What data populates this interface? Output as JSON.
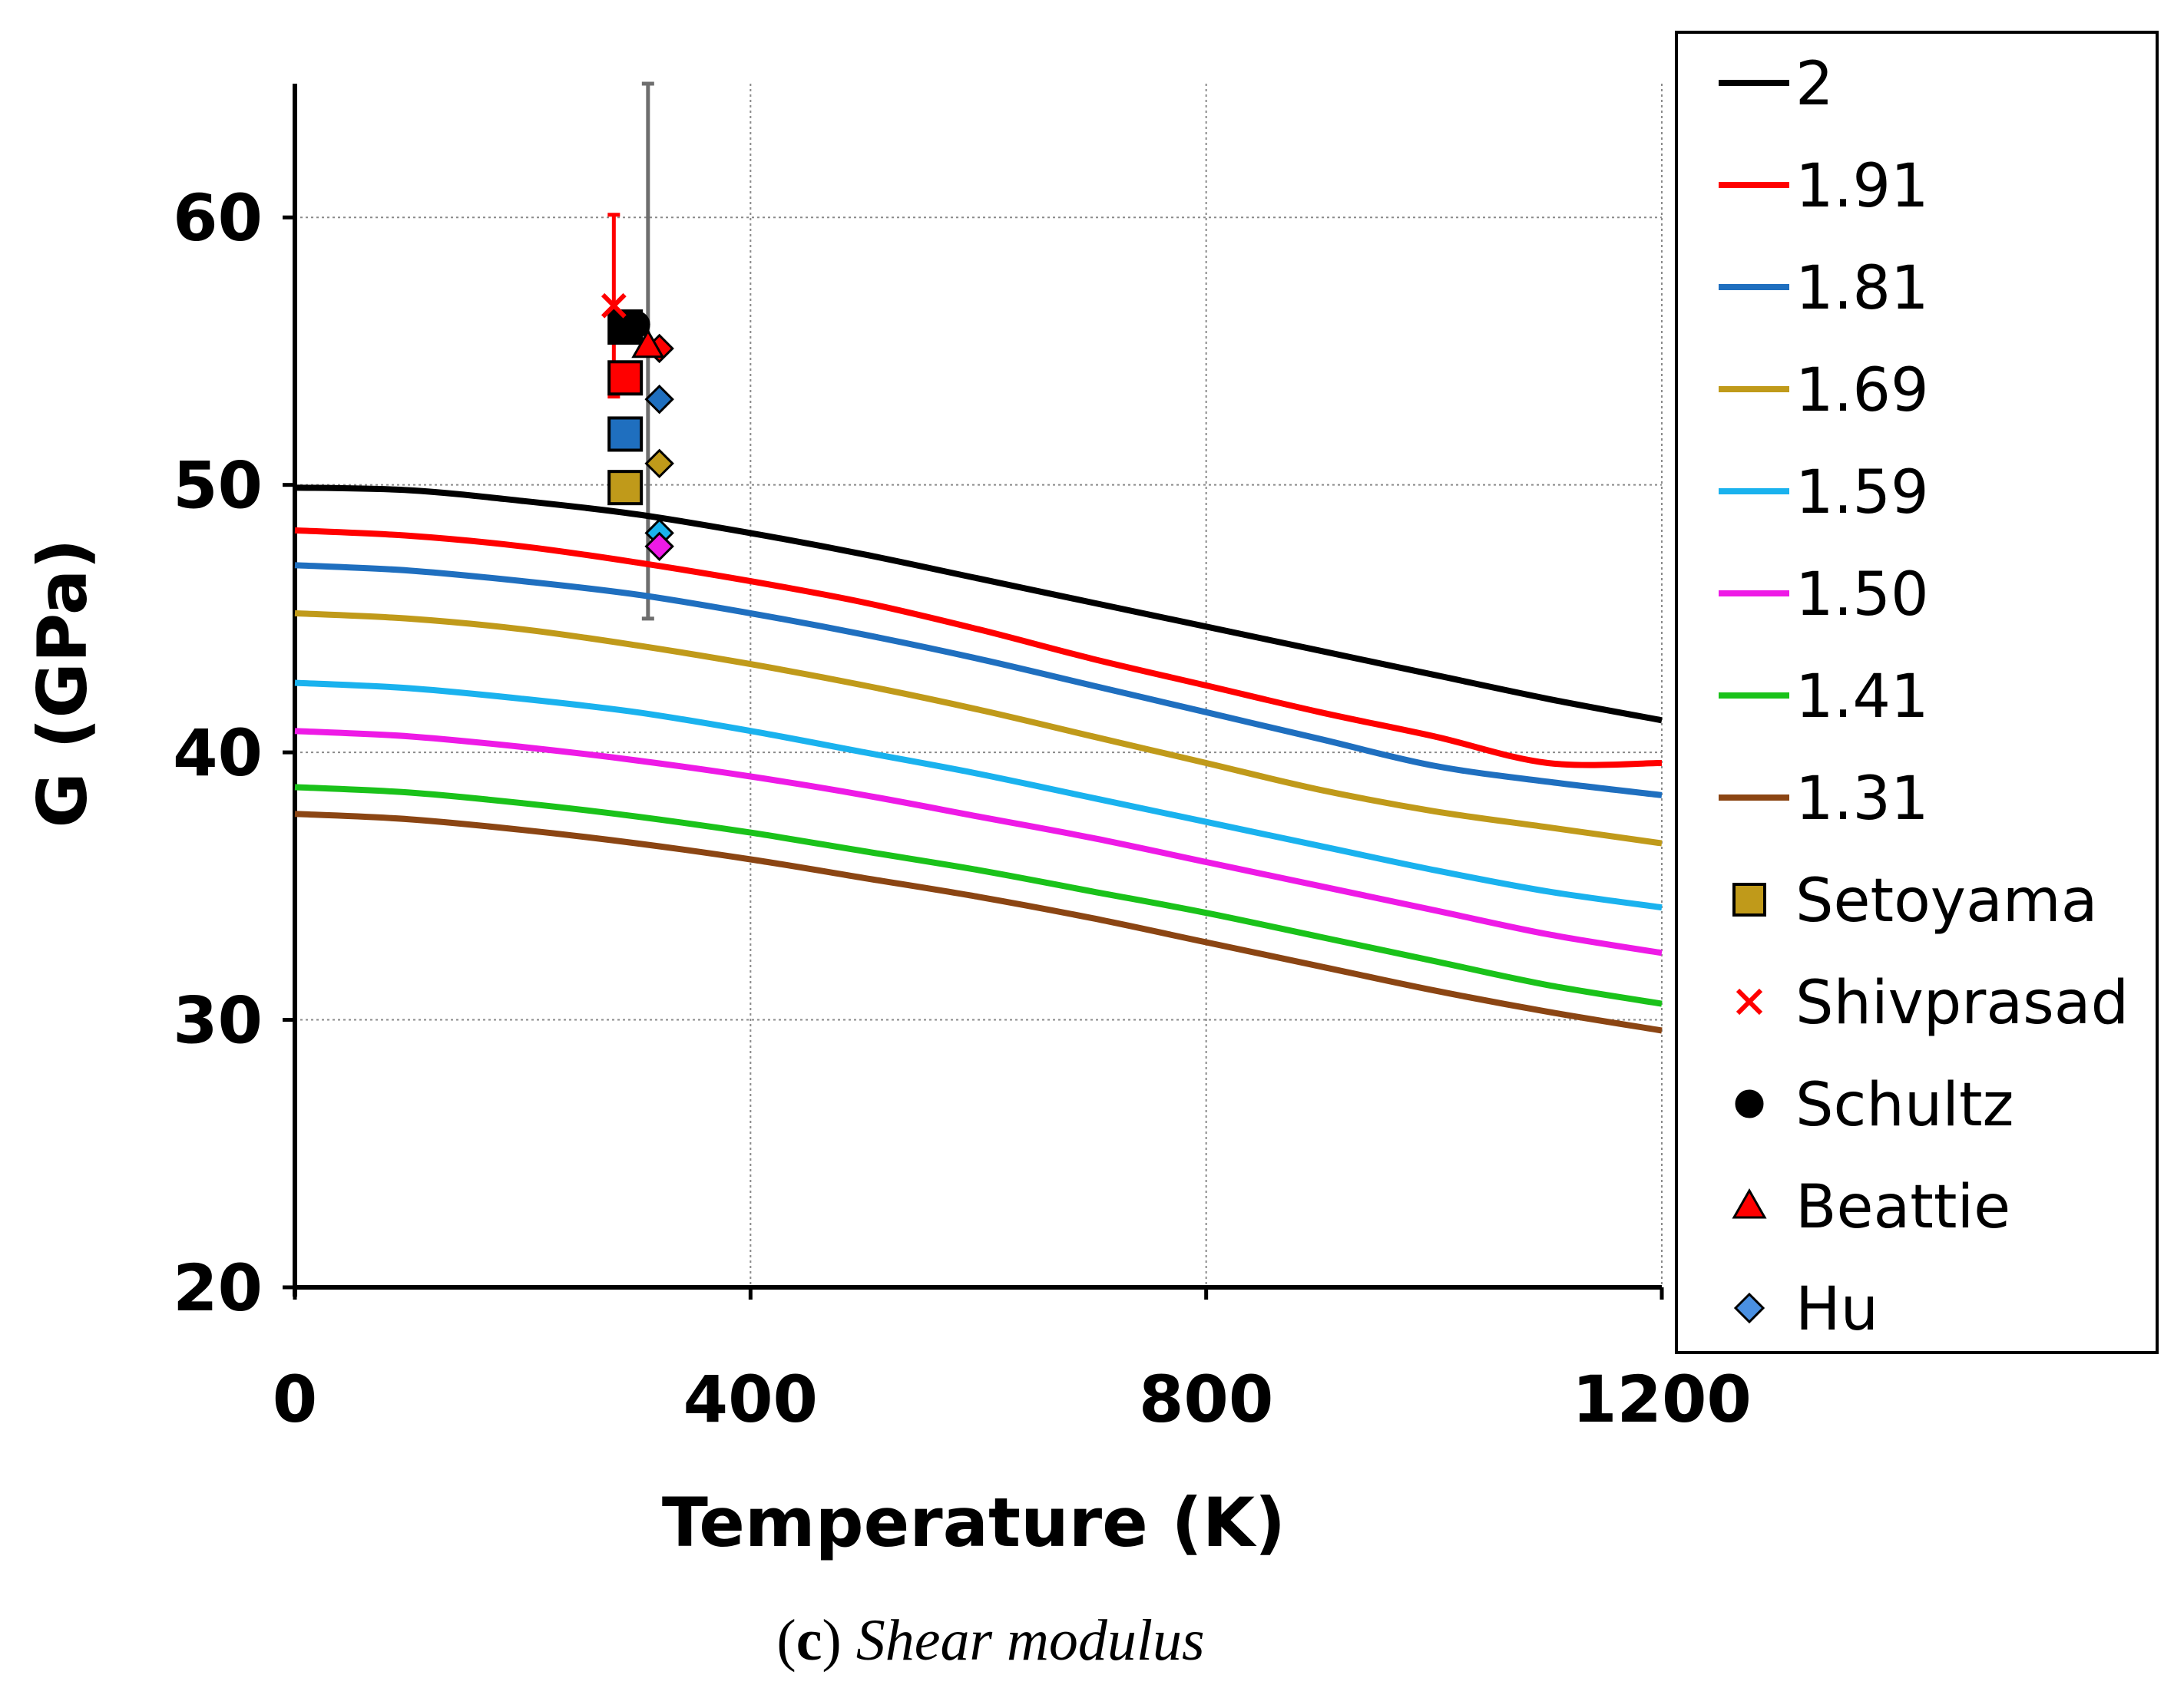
{
  "chart_data": {
    "type": "line",
    "xlabel": "Temperature (K)",
    "ylabel": "G (GPa)",
    "xlim": [
      0,
      1200
    ],
    "ylim": [
      20,
      65
    ],
    "xticks": [
      0,
      400,
      800,
      1200
    ],
    "yticks": [
      20,
      30,
      40,
      50,
      60
    ],
    "grid": true,
    "legend_position": "right",
    "caption": {
      "letter": "c",
      "text": "Shear modulus"
    },
    "series": [
      {
        "name": "2",
        "color": "#000000",
        "x": [
          0,
          100,
          200,
          300,
          400,
          500,
          600,
          700,
          800,
          900,
          1000,
          1100,
          1200
        ],
        "y": [
          49.9,
          49.8,
          49.4,
          48.9,
          48.2,
          47.4,
          46.5,
          45.6,
          44.7,
          43.8,
          42.9,
          42.0,
          41.2
        ]
      },
      {
        "name": "1.91",
        "color": "#ff0000",
        "x": [
          0,
          100,
          200,
          300,
          400,
          500,
          600,
          700,
          800,
          900,
          1000,
          1100,
          1200
        ],
        "y": [
          48.3,
          48.1,
          47.7,
          47.1,
          46.4,
          45.6,
          44.6,
          43.5,
          42.5,
          41.5,
          40.6,
          39.6,
          39.6
        ]
      },
      {
        "name": "1.81",
        "color": "#1f6fbf",
        "x": [
          0,
          100,
          200,
          300,
          400,
          500,
          600,
          700,
          800,
          900,
          1000,
          1100,
          1200
        ],
        "y": [
          47.0,
          46.8,
          46.4,
          45.9,
          45.2,
          44.4,
          43.5,
          42.5,
          41.5,
          40.5,
          39.5,
          38.9,
          38.4
        ]
      },
      {
        "name": "1.69",
        "color": "#c09a1a",
        "x": [
          0,
          100,
          200,
          300,
          400,
          500,
          600,
          700,
          800,
          900,
          1000,
          1100,
          1200
        ],
        "y": [
          45.2,
          45.0,
          44.6,
          44.0,
          43.3,
          42.5,
          41.6,
          40.6,
          39.6,
          38.6,
          37.8,
          37.2,
          36.6
        ]
      },
      {
        "name": "1.59",
        "color": "#1ab2ee",
        "x": [
          0,
          100,
          200,
          300,
          400,
          500,
          600,
          700,
          800,
          900,
          1000,
          1100,
          1200
        ],
        "y": [
          42.6,
          42.4,
          42.0,
          41.5,
          40.8,
          40.0,
          39.2,
          38.3,
          37.4,
          36.5,
          35.6,
          34.8,
          34.2
        ]
      },
      {
        "name": "1.50",
        "color": "#ee1ae6",
        "x": [
          0,
          100,
          200,
          300,
          400,
          500,
          600,
          700,
          800,
          900,
          1000,
          1100,
          1200
        ],
        "y": [
          40.8,
          40.6,
          40.2,
          39.7,
          39.1,
          38.4,
          37.6,
          36.8,
          35.9,
          35.0,
          34.1,
          33.2,
          32.5
        ]
      },
      {
        "name": "1.41",
        "color": "#1ac21a",
        "x": [
          0,
          100,
          200,
          300,
          400,
          500,
          600,
          700,
          800,
          900,
          1000,
          1100,
          1200
        ],
        "y": [
          38.7,
          38.5,
          38.1,
          37.6,
          37.0,
          36.3,
          35.6,
          34.8,
          34.0,
          33.1,
          32.2,
          31.3,
          30.6
        ]
      },
      {
        "name": "1.31",
        "color": "#8b4513",
        "x": [
          0,
          100,
          200,
          300,
          400,
          500,
          600,
          700,
          800,
          900,
          1000,
          1100,
          1200
        ],
        "y": [
          37.7,
          37.5,
          37.1,
          36.6,
          36.0,
          35.3,
          34.6,
          33.8,
          32.9,
          32.0,
          31.1,
          30.3,
          29.6
        ]
      }
    ],
    "markers": [
      {
        "name": "Setoyama",
        "symbol": "square",
        "legend_color": "#c09a1a",
        "points": [
          {
            "x": 290,
            "y": 49.9,
            "color": "#c09a1a"
          },
          {
            "x": 290,
            "y": 51.9,
            "color": "#1f6fbf"
          },
          {
            "x": 290,
            "y": 54.0,
            "color": "#ff0000"
          },
          {
            "x": 290,
            "y": 55.9,
            "color": "#000000"
          }
        ]
      },
      {
        "name": "Shivprasad",
        "symbol": "x",
        "legend_color": "#ff0000",
        "points": [
          {
            "x": 280,
            "y": 56.7,
            "color": "#ff0000",
            "err_low": 53.3,
            "err_high": 60.1
          }
        ]
      },
      {
        "name": "Schultz",
        "symbol": "circle",
        "legend_color": "#000000",
        "points": [
          {
            "x": 300,
            "y": 56.0,
            "color": "#000000"
          }
        ]
      },
      {
        "name": "Beattie",
        "symbol": "triangle",
        "legend_color": "#ff0000",
        "points": [
          {
            "x": 310,
            "y": 55.2,
            "color": "#ff0000",
            "err_low": 45.0,
            "err_high": 65.0
          }
        ]
      },
      {
        "name": "Hu",
        "symbol": "diamond",
        "legend_color": "#4a90e2",
        "points": [
          {
            "x": 320,
            "y": 55.1,
            "color": "#ff0000"
          },
          {
            "x": 320,
            "y": 53.2,
            "color": "#1f6fbf"
          },
          {
            "x": 320,
            "y": 50.8,
            "color": "#c09a1a"
          },
          {
            "x": 320,
            "y": 48.2,
            "color": "#1ab2ee"
          },
          {
            "x": 320,
            "y": 47.7,
            "color": "#ee1ae6"
          }
        ]
      }
    ]
  }
}
